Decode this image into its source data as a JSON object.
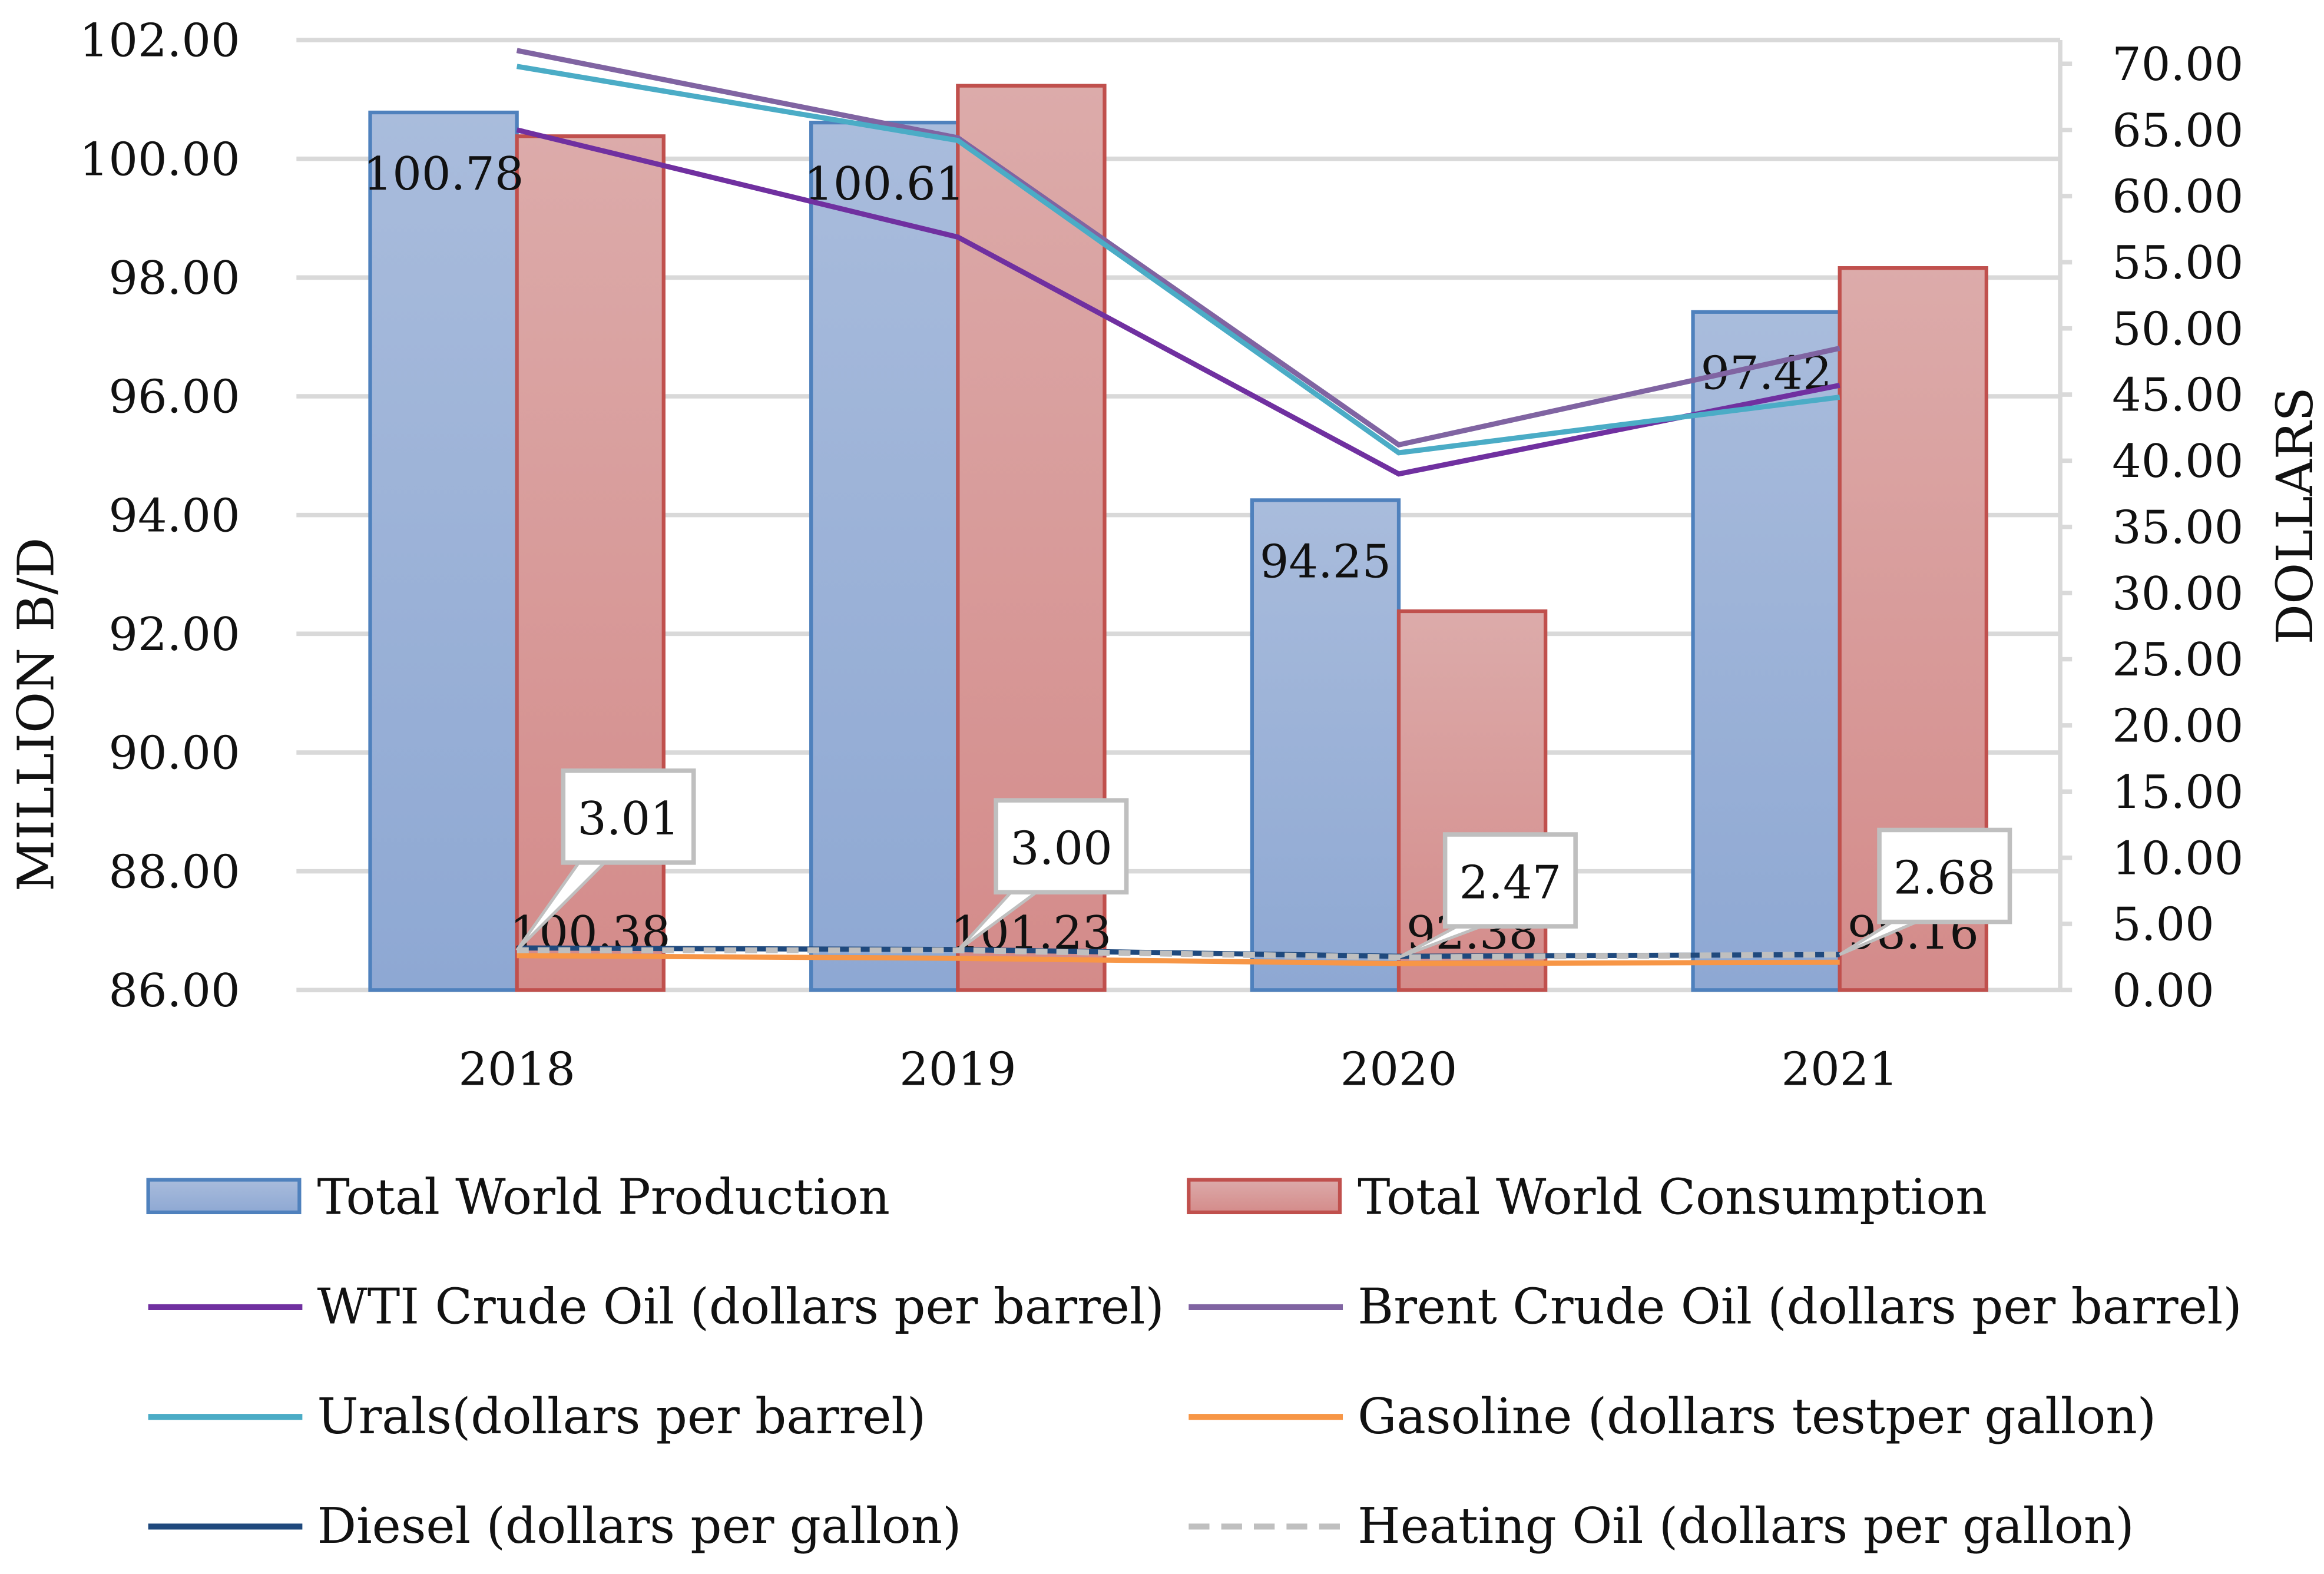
{
  "chart_data": {
    "type": "bar",
    "title": "",
    "categories": [
      "2018",
      "2019",
      "2020",
      "2021"
    ],
    "ylabel": "MILLION B/D",
    "y2label": "DOLLARS",
    "ylim": [
      86,
      102
    ],
    "y2lim": [
      0,
      70
    ],
    "yticks": [
      "86.00",
      "88.00",
      "90.00",
      "92.00",
      "94.00",
      "96.00",
      "98.00",
      "100.00",
      "102.00"
    ],
    "y2ticks": [
      "0.00",
      "5.00",
      "10.00",
      "15.00",
      "20.00",
      "25.00",
      "30.00",
      "35.00",
      "40.00",
      "45.00",
      "50.00",
      "55.00",
      "60.00",
      "65.00",
      "70.00"
    ],
    "grid": true,
    "legend_position": "bottom",
    "bar_series": [
      {
        "name": "Total World Production",
        "values": [
          100.78,
          100.61,
          94.25,
          97.42
        ],
        "labels": [
          "100.78",
          "100.61",
          "94.25",
          "97.42"
        ],
        "color": "#4f81bd",
        "fill": "#9db3d9"
      },
      {
        "name": "Total World Consumption",
        "values": [
          100.38,
          101.23,
          92.38,
          98.16
        ],
        "labels": [
          "100.38",
          "101.23",
          "92.38",
          "98.16"
        ],
        "color": "#c0504d",
        "fill": "#d99594"
      }
    ],
    "line_series": [
      {
        "name": "WTI Crude Oil (dollars per barrel)",
        "values": [
          65.0,
          56.9,
          39.0,
          45.7
        ],
        "color": "#7030a0",
        "dash": false
      },
      {
        "name": "Brent Crude Oil (dollars per barrel)",
        "values": [
          71.0,
          64.4,
          41.2,
          48.5
        ],
        "color": "#8064a2",
        "dash": false
      },
      {
        "name": "Urals(dollars per barrel)",
        "values": [
          69.8,
          64.2,
          40.6,
          44.8
        ],
        "color": "#4bacc6",
        "dash": false
      },
      {
        "name": "Gasoline (dollars testper gallon)",
        "values": [
          2.6,
          2.4,
          2.0,
          2.1
        ],
        "color": "#f79646",
        "dash": false
      },
      {
        "name": "Diesel (dollars per gallon)",
        "values": [
          3.18,
          3.06,
          2.55,
          2.68
        ],
        "color": "#1f497d",
        "dash": false
      },
      {
        "name": "Heating Oil (dollars per gallon)",
        "values": [
          3.01,
          3.0,
          2.47,
          2.68
        ],
        "labels": [
          "3.01",
          "3.00",
          "2.47",
          "2.68"
        ],
        "color": "#bfbfbf",
        "dash": true
      }
    ]
  }
}
